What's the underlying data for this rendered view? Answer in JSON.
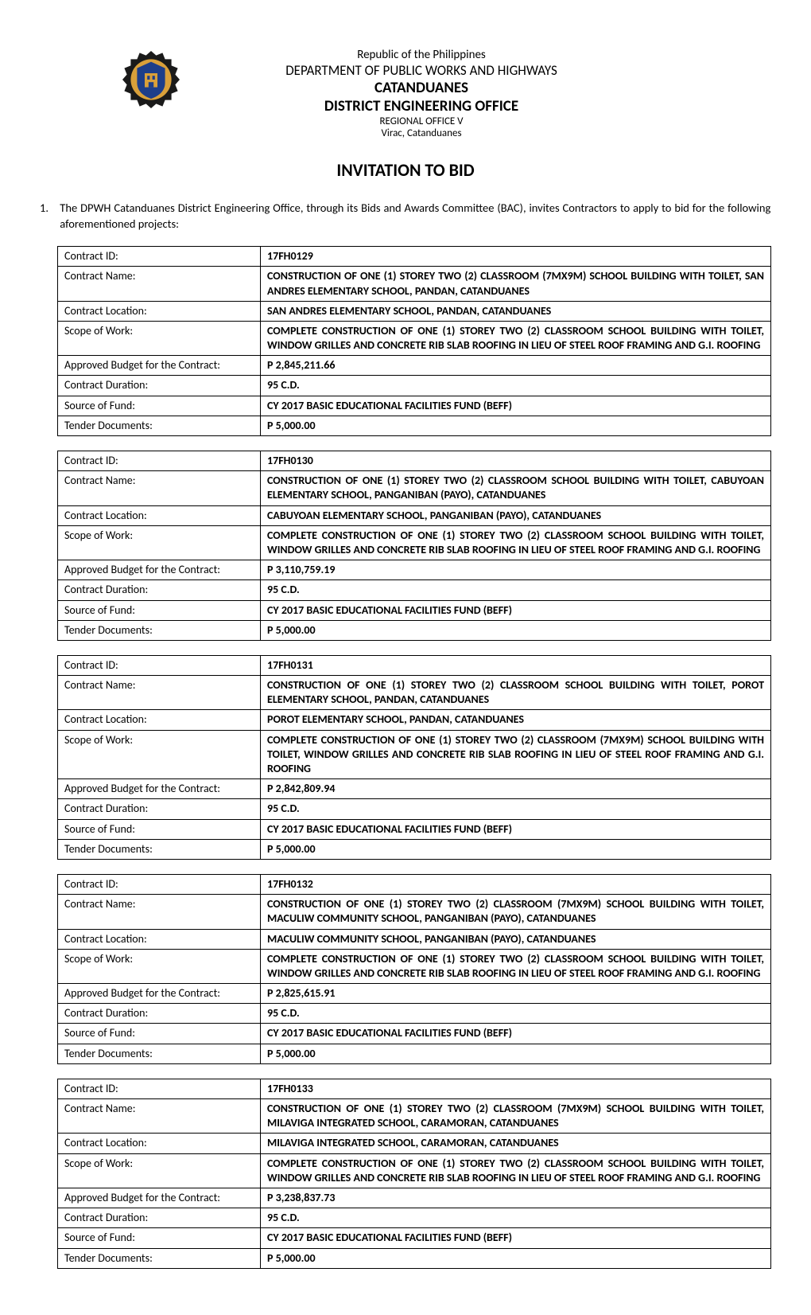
{
  "header": {
    "line1": "Republic of the Philippines",
    "line2": "DEPARTMENT OF PUBLIC WORKS AND HIGHWAYS",
    "line3": "CATANDUANES",
    "line4": "DISTRICT ENGINEERING OFFICE",
    "line5": "REGIONAL OFFICE V",
    "line6": "Virac, Catanduanes",
    "logo_colors": {
      "gear": "#1a1a1a",
      "shield": "#d9a03a",
      "inner": "#1d3e8a"
    }
  },
  "title": "INVITATION TO BID",
  "intro": {
    "num": "1.",
    "text": "The DPWH Catanduanes District Engineering Office, through its Bids and Awards Committee (BAC), invites Contractors to apply to bid for the following aforementioned projects:"
  },
  "row_labels": {
    "id": "Contract ID:",
    "name": "Contract Name:",
    "location": "Contract Location:",
    "scope": "Scope of Work:",
    "budget": "Approved Budget for the Contract:",
    "duration": "Contract Duration:",
    "fund": "Source of Fund:",
    "tender": "Tender Documents:"
  },
  "contracts": [
    {
      "id": "17FH0129",
      "name": "CONSTRUCTION OF ONE (1) STOREY TWO (2) CLASSROOM (7MX9M) SCHOOL BUILDING WITH TOILET, SAN ANDRES ELEMENTARY SCHOOL, PANDAN, CATANDUANES",
      "location": "SAN ANDRES ELEMENTARY SCHOOL, PANDAN, CATANDUANES",
      "scope": "COMPLETE CONSTRUCTION OF ONE (1) STOREY TWO (2) CLASSROOM SCHOOL BUILDING WITH TOILET, WINDOW GRILLES AND CONCRETE RIB SLAB ROOFING IN LIEU OF STEEL ROOF FRAMING AND G.I. ROOFING",
      "budget": "P 2,845,211.66",
      "duration": "95 C.D.",
      "fund": "CY 2017 BASIC EDUCATIONAL FACILITIES FUND (BEFF)",
      "tender": "P 5,000.00"
    },
    {
      "id": "17FH0130",
      "name": "CONSTRUCTION OF ONE (1) STOREY TWO (2) CLASSROOM SCHOOL BUILDING WITH TOILET, CABUYOAN ELEMENTARY SCHOOL, PANGANIBAN (PAYO), CATANDUANES",
      "location": "CABUYOAN ELEMENTARY SCHOOL, PANGANIBAN (PAYO), CATANDUANES",
      "scope": "COMPLETE CONSTRUCTION OF ONE (1) STOREY TWO (2) CLASSROOM SCHOOL BUILDING WITH TOILET, WINDOW GRILLES AND CONCRETE RIB SLAB ROOFING IN LIEU OF STEEL ROOF FRAMING AND G.I. ROOFING",
      "budget": "P 3,110,759.19",
      "duration": "95 C.D.",
      "fund": "CY 2017 BASIC EDUCATIONAL FACILITIES FUND (BEFF)",
      "tender": "P 5,000.00"
    },
    {
      "id": "17FH0131",
      "name": "CONSTRUCTION OF ONE (1) STOREY TWO (2) CLASSROOM SCHOOL BUILDING WITH TOILET, POROT ELEMENTARY SCHOOL, PANDAN, CATANDUANES",
      "location": "POROT ELEMENTARY SCHOOL, PANDAN, CATANDUANES",
      "scope": "COMPLETE CONSTRUCTION OF ONE (1) STOREY TWO (2) CLASSROOM (7MX9M) SCHOOL BUILDING WITH TOILET, WINDOW GRILLES AND CONCRETE RIB SLAB ROOFING IN LIEU OF STEEL ROOF FRAMING AND G.I. ROOFING",
      "budget": "P 2,842,809.94",
      "duration": "95 C.D.",
      "fund": "CY 2017 BASIC EDUCATIONAL FACILITIES FUND (BEFF)",
      "tender": "P 5,000.00"
    },
    {
      "id": "17FH0132",
      "name": "CONSTRUCTION OF ONE (1) STOREY TWO (2) CLASSROOM (7MX9M) SCHOOL BUILDING WITH TOILET, MACULIW COMMUNITY SCHOOL, PANGANIBAN (PAYO), CATANDUANES",
      "location": "MACULIW COMMUNITY SCHOOL, PANGANIBAN (PAYO), CATANDUANES",
      "scope": "COMPLETE CONSTRUCTION OF ONE (1) STOREY TWO (2) CLASSROOM SCHOOL BUILDING WITH TOILET, WINDOW GRILLES AND CONCRETE RIB SLAB ROOFING IN LIEU OF STEEL ROOF FRAMING AND G.I. ROOFING",
      "budget": "P 2,825,615.91",
      "duration": "95 C.D.",
      "fund": "CY 2017 BASIC EDUCATIONAL FACILITIES FUND (BEFF)",
      "tender": "P 5,000.00"
    },
    {
      "id": "17FH0133",
      "name": "CONSTRUCTION OF ONE (1) STOREY TWO (2) CLASSROOM (7MX9M) SCHOOL BUILDING WITH TOILET, MILAVIGA INTEGRATED SCHOOL, CARAMORAN, CATANDUANES",
      "location": "MILAVIGA INTEGRATED SCHOOL, CARAMORAN, CATANDUANES",
      "scope": "COMPLETE CONSTRUCTION OF ONE (1) STOREY TWO (2) CLASSROOM SCHOOL BUILDING WITH TOILET, WINDOW GRILLES AND CONCRETE RIB SLAB ROOFING IN LIEU OF STEEL ROOF FRAMING AND G.I. ROOFING",
      "budget": "P 3,238,837.73",
      "duration": "95 C.D.",
      "fund": "CY 2017 BASIC EDUCATIONAL FACILITIES FUND (BEFF)",
      "tender": "P 5,000.00"
    }
  ]
}
